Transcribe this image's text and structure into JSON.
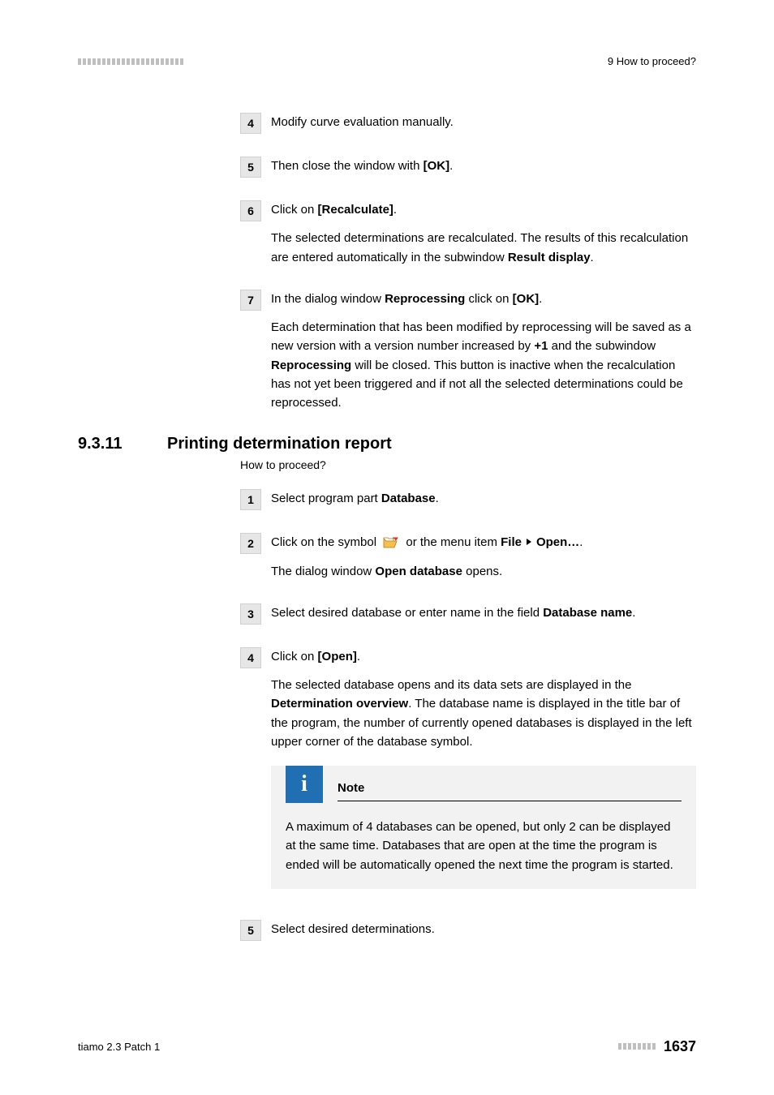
{
  "header": {
    "dash_count": 22,
    "chapter_label": "9 How to proceed?"
  },
  "steps_top": [
    {
      "num": "4",
      "paras": [
        {
          "runs": [
            {
              "t": "Modify curve evaluation manually."
            }
          ]
        }
      ]
    },
    {
      "num": "5",
      "paras": [
        {
          "runs": [
            {
              "t": "Then close the window with "
            },
            {
              "t": "[OK]",
              "b": true
            },
            {
              "t": "."
            }
          ]
        }
      ]
    },
    {
      "num": "6",
      "paras": [
        {
          "runs": [
            {
              "t": "Click on "
            },
            {
              "t": "[Recalculate]",
              "b": true
            },
            {
              "t": "."
            }
          ]
        },
        {
          "runs": [
            {
              "t": "The selected determinations are recalculated. The results of this recalculation are entered automatically in the subwindow "
            },
            {
              "t": "Result display",
              "b": true
            },
            {
              "t": "."
            }
          ]
        }
      ]
    },
    {
      "num": "7",
      "paras": [
        {
          "runs": [
            {
              "t": "In the dialog window "
            },
            {
              "t": "Reprocessing",
              "b": true
            },
            {
              "t": " click on "
            },
            {
              "t": "[OK]",
              "b": true
            },
            {
              "t": "."
            }
          ]
        },
        {
          "runs": [
            {
              "t": "Each determination that has been modified by reprocessing will be saved as a new version with a version number increased by "
            },
            {
              "t": "+1",
              "b": true
            },
            {
              "t": " and the subwindow "
            },
            {
              "t": "Reprocessing",
              "b": true
            },
            {
              "t": " will be closed. This button is inactive when the recalculation has not yet been triggered and if not all the selected determinations could be reprocessed."
            }
          ]
        }
      ]
    }
  ],
  "section": {
    "num": "9.3.11",
    "title": "Printing determination report",
    "sub": "How to proceed?"
  },
  "steps_bottom": [
    {
      "num": "1",
      "paras": [
        {
          "runs": [
            {
              "t": "Select program part "
            },
            {
              "t": "Database",
              "b": true
            },
            {
              "t": "."
            }
          ]
        }
      ]
    },
    {
      "num": "2",
      "paras": [
        {
          "runs": [
            {
              "t": "Click on the symbol "
            },
            {
              "icon": "open"
            },
            {
              "t": " or the menu item "
            },
            {
              "t": "File",
              "b": true
            },
            {
              "tri": true
            },
            {
              "t": "Open…",
              "b": true
            },
            {
              "t": "."
            }
          ]
        },
        {
          "runs": [
            {
              "t": "The dialog window "
            },
            {
              "t": "Open database",
              "b": true
            },
            {
              "t": " opens."
            }
          ]
        }
      ]
    },
    {
      "num": "3",
      "paras": [
        {
          "runs": [
            {
              "t": "Select desired database or enter name in the field "
            },
            {
              "t": "Database name",
              "b": true
            },
            {
              "t": "."
            }
          ]
        }
      ]
    },
    {
      "num": "4",
      "paras": [
        {
          "runs": [
            {
              "t": "Click on "
            },
            {
              "t": "[Open]",
              "b": true
            },
            {
              "t": "."
            }
          ]
        },
        {
          "runs": [
            {
              "t": "The selected database opens and its data sets are displayed in the "
            },
            {
              "t": "Determination overview",
              "b": true
            },
            {
              "t": ". The database name is displayed in the title bar of the program, the number of currently opened databases is displayed in the left upper corner of the database symbol."
            }
          ]
        }
      ],
      "note": {
        "title": "Note",
        "body": "A maximum of 4 databases can be opened, but only 2 can be displayed at the same time. Databases that are open at the time the program is ended will be automatically opened the next time the program is started."
      }
    },
    {
      "num": "5",
      "paras": [
        {
          "runs": [
            {
              "t": "Select desired determinations."
            }
          ]
        }
      ]
    }
  ],
  "footer": {
    "left": "tiamo 2.3 Patch 1",
    "dash_count": 8,
    "page": "1637"
  },
  "colors": {
    "dash": "#bfbfbf",
    "step_bg": "#e6e6e6",
    "note_bg": "#f2f2f2",
    "note_icon_bg": "#1f6fb2",
    "folder_fill": "#f6c04d",
    "folder_stroke": "#b07a1a",
    "arrow_fill": "#d23a2a"
  }
}
